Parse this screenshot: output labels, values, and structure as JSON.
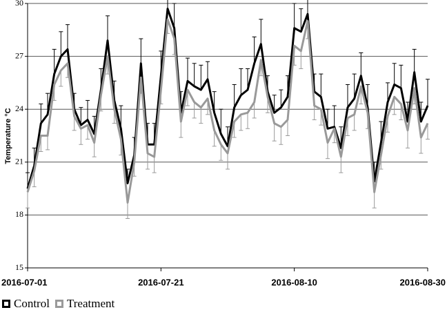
{
  "chart_data": {
    "type": "line",
    "y_label": "Temperature °C",
    "x": [
      "2016-07-01",
      "2016-07-02",
      "2016-07-03",
      "2016-07-04",
      "2016-07-05",
      "2016-07-06",
      "2016-07-07",
      "2016-07-08",
      "2016-07-09",
      "2016-07-10",
      "2016-07-11",
      "2016-07-12",
      "2016-07-13",
      "2016-07-14",
      "2016-07-15",
      "2016-07-16",
      "2016-07-17",
      "2016-07-18",
      "2016-07-19",
      "2016-07-20",
      "2016-07-21",
      "2016-07-22",
      "2016-07-23",
      "2016-07-24",
      "2016-07-25",
      "2016-07-26",
      "2016-07-27",
      "2016-07-28",
      "2016-07-29",
      "2016-07-30",
      "2016-07-31",
      "2016-08-01",
      "2016-08-02",
      "2016-08-03",
      "2016-08-04",
      "2016-08-05",
      "2016-08-06",
      "2016-08-07",
      "2016-08-08",
      "2016-08-09",
      "2016-08-10",
      "2016-08-11",
      "2016-08-12",
      "2016-08-13",
      "2016-08-14",
      "2016-08-15",
      "2016-08-16",
      "2016-08-17",
      "2016-08-18",
      "2016-08-19",
      "2016-08-20",
      "2016-08-21",
      "2016-08-22",
      "2016-08-23",
      "2016-08-24",
      "2016-08-25",
      "2016-08-26",
      "2016-08-27",
      "2016-08-28",
      "2016-08-29",
      "2016-08-30"
    ],
    "series": [
      {
        "name": "Control",
        "color": "#000000",
        "error_direction": "up",
        "values": [
          19.5,
          20.8,
          23.2,
          23.7,
          26.0,
          27.0,
          27.4,
          24.0,
          23.1,
          23.4,
          22.6,
          25.1,
          27.9,
          24.5,
          22.9,
          19.8,
          21.4,
          26.6,
          22.0,
          22.0,
          25.9,
          29.7,
          28.6,
          23.8,
          25.6,
          25.3,
          25.1,
          25.7,
          23.8,
          22.6,
          21.9,
          24.1,
          24.8,
          25.1,
          26.6,
          27.7,
          25.0,
          23.8,
          24.1,
          24.7,
          28.6,
          28.4,
          29.4,
          25.0,
          24.7,
          22.9,
          23.0,
          21.8,
          24.1,
          24.6,
          25.9,
          24.1,
          19.9,
          22.1,
          24.4,
          25.4,
          25.2,
          23.3,
          26.1,
          23.3,
          24.2
        ],
        "errors": [
          0.9,
          1.0,
          1.1,
          1.2,
          1.4,
          1.4,
          1.4,
          0.9,
          1.0,
          1.1,
          1.0,
          1.2,
          1.4,
          1.1,
          1.3,
          0.8,
          1.0,
          1.4,
          1.2,
          1.2,
          1.4,
          1.0,
          1.4,
          1.2,
          1.3,
          1.3,
          1.4,
          1.0,
          1.2,
          1.4,
          1.1,
          1.3,
          1.5,
          1.2,
          1.5,
          1.4,
          0.9,
          1.0,
          1.0,
          1.2,
          1.4,
          1.3,
          0.9,
          1.0,
          1.3,
          1.1,
          1.2,
          1.2,
          1.3,
          1.4,
          1.3,
          1.3,
          1.1,
          1.2,
          1.1,
          1.2,
          1.3,
          1.1,
          1.3,
          1.1,
          1.5
        ]
      },
      {
        "name": "Treatment",
        "color": "#999999",
        "error_direction": "down",
        "values": [
          19.3,
          20.5,
          22.5,
          22.5,
          25.4,
          26.2,
          26.6,
          23.6,
          22.9,
          23.1,
          22.1,
          24.8,
          27.0,
          24.0,
          22.3,
          18.7,
          21.0,
          25.8,
          21.5,
          21.3,
          25.1,
          29.1,
          28.0,
          23.3,
          25.1,
          24.4,
          24.1,
          24.6,
          22.8,
          22.0,
          21.5,
          23.3,
          23.7,
          23.8,
          24.4,
          26.8,
          24.7,
          23.2,
          23.0,
          23.4,
          27.6,
          27.3,
          29.0,
          24.2,
          24.0,
          22.1,
          22.9,
          21.3,
          23.5,
          23.7,
          25.3,
          23.8,
          19.3,
          21.4,
          23.6,
          24.7,
          24.3,
          22.8,
          25.2,
          22.4,
          23.2
        ],
        "errors": [
          0.9,
          0.9,
          0.9,
          0.8,
          0.9,
          0.9,
          0.8,
          0.8,
          0.9,
          0.8,
          0.8,
          0.9,
          1.0,
          0.8,
          0.9,
          0.9,
          0.8,
          0.9,
          0.9,
          0.9,
          0.8,
          0.8,
          0.9,
          0.9,
          0.9,
          0.9,
          0.9,
          0.9,
          0.9,
          0.9,
          0.9,
          0.9,
          0.9,
          0.9,
          0.9,
          0.9,
          0.9,
          1.0,
          1.0,
          0.9,
          1.1,
          1.0,
          1.0,
          0.8,
          0.9,
          0.9,
          0.8,
          0.9,
          1.0,
          0.9,
          1.0,
          0.9,
          0.9,
          0.8,
          0.9,
          1.0,
          0.9,
          1.0,
          0.9,
          0.9,
          0.9
        ]
      }
    ],
    "xlim": [
      "2016-07-01",
      "2016-08-30"
    ],
    "xticks": [
      "2016-07-01",
      "2016-07-21",
      "2016-08-10",
      "2016-08-30"
    ],
    "ylim": [
      15,
      30
    ],
    "yticks": [
      15,
      18,
      21,
      24,
      27,
      30
    ],
    "grid": true,
    "legend": "bottom-left"
  }
}
